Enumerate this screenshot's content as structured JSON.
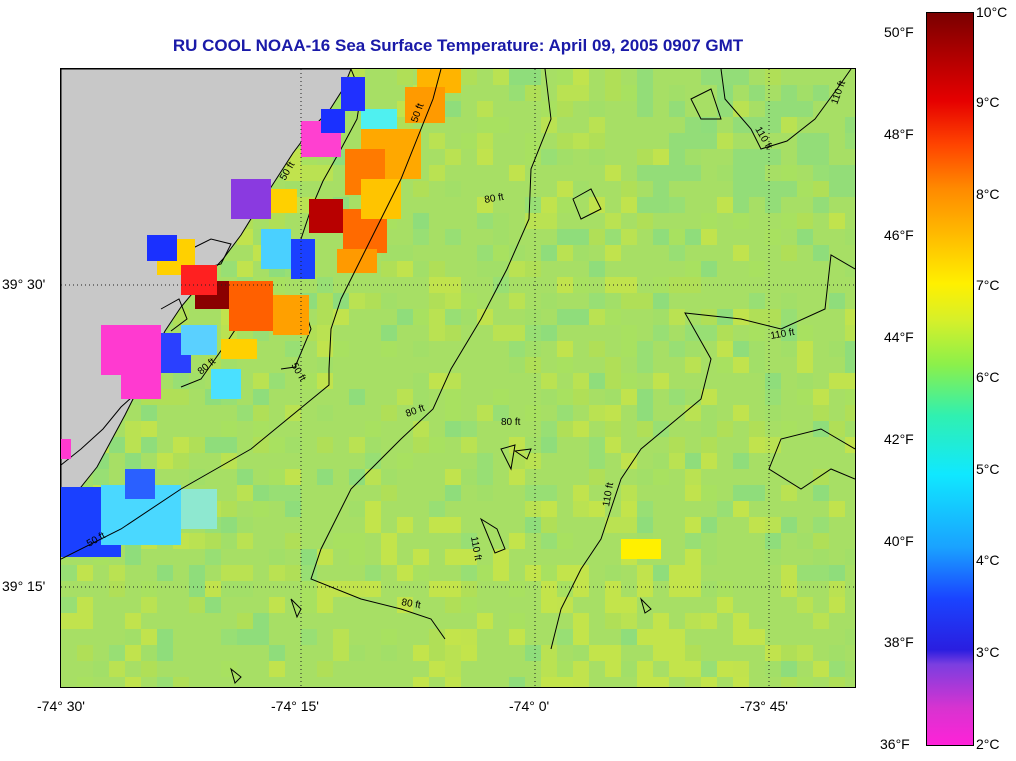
{
  "title": "RU COOL  NOAA-16  Sea Surface Temperature:  April 09, 2005 0907 GMT",
  "x_ticks": [
    "-74° 30'",
    "-74° 15'",
    "-74° 0'",
    "-73° 45'"
  ],
  "y_ticks": [
    "39° 30'",
    "39° 15'"
  ],
  "colorbar": {
    "fahrenheit": [
      "50°F",
      "48°F",
      "46°F",
      "44°F",
      "42°F",
      "40°F",
      "38°F",
      "36°F"
    ],
    "celsius": [
      "10°C",
      "9°C",
      "8°C",
      "7°C",
      "6°C",
      "5°C",
      "4°C",
      "3°C",
      "2°C"
    ]
  },
  "contour_labels": [
    "50 ft",
    "50 ft",
    "50 ft",
    "50 ft",
    "80 ft",
    "80 ft",
    "80 ft",
    "80 ft",
    "80 ft",
    "110 ft",
    "110 ft",
    "110 ft",
    "110 ft",
    "110 ft"
  ],
  "colors": {
    "land": "#c8c8c8",
    "water_base": "#b7e05a",
    "title": "#1a1aa8"
  }
}
